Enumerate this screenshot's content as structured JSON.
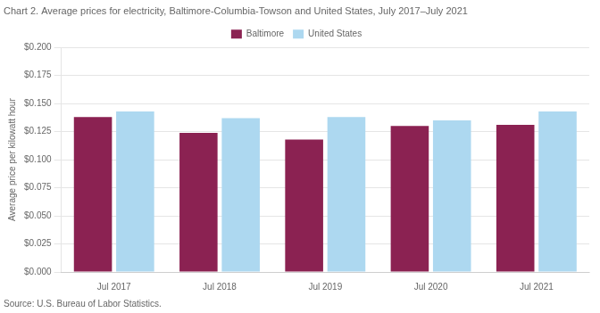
{
  "chart_data": {
    "type": "bar",
    "title": "Chart 2. Average prices for electricity, Baltimore-Columbia-Towson and United States, July 2017–July 2021",
    "ylabel": "Average price per kilowatt hour",
    "annotations": [
      "Source: U.S. Bureau of Labor Statistics."
    ],
    "categories": [
      "Jul 2017",
      "Jul 2018",
      "Jul 2019",
      "Jul 2020",
      "Jul 2021"
    ],
    "series": [
      {
        "name": "Baltimore",
        "color": "#8B2252",
        "values": [
          0.138,
          0.124,
          0.118,
          0.13,
          0.131
        ]
      },
      {
        "name": "United States",
        "color": "#ADD8F0",
        "values": [
          0.143,
          0.137,
          0.138,
          0.135,
          0.143
        ]
      }
    ],
    "ylim": [
      0.0,
      0.2
    ],
    "yticks": [
      {
        "value": 0.0,
        "label": "$0.000"
      },
      {
        "value": 0.025,
        "label": "$0.025"
      },
      {
        "value": 0.05,
        "label": "$0.050"
      },
      {
        "value": 0.075,
        "label": "$0.075"
      },
      {
        "value": 0.1,
        "label": "$0.100"
      },
      {
        "value": 0.125,
        "label": "$0.125"
      },
      {
        "value": 0.15,
        "label": "$0.150"
      },
      {
        "value": 0.175,
        "label": "$0.175"
      },
      {
        "value": 0.2,
        "label": "$0.200"
      }
    ],
    "grid": true,
    "legend": "top"
  }
}
